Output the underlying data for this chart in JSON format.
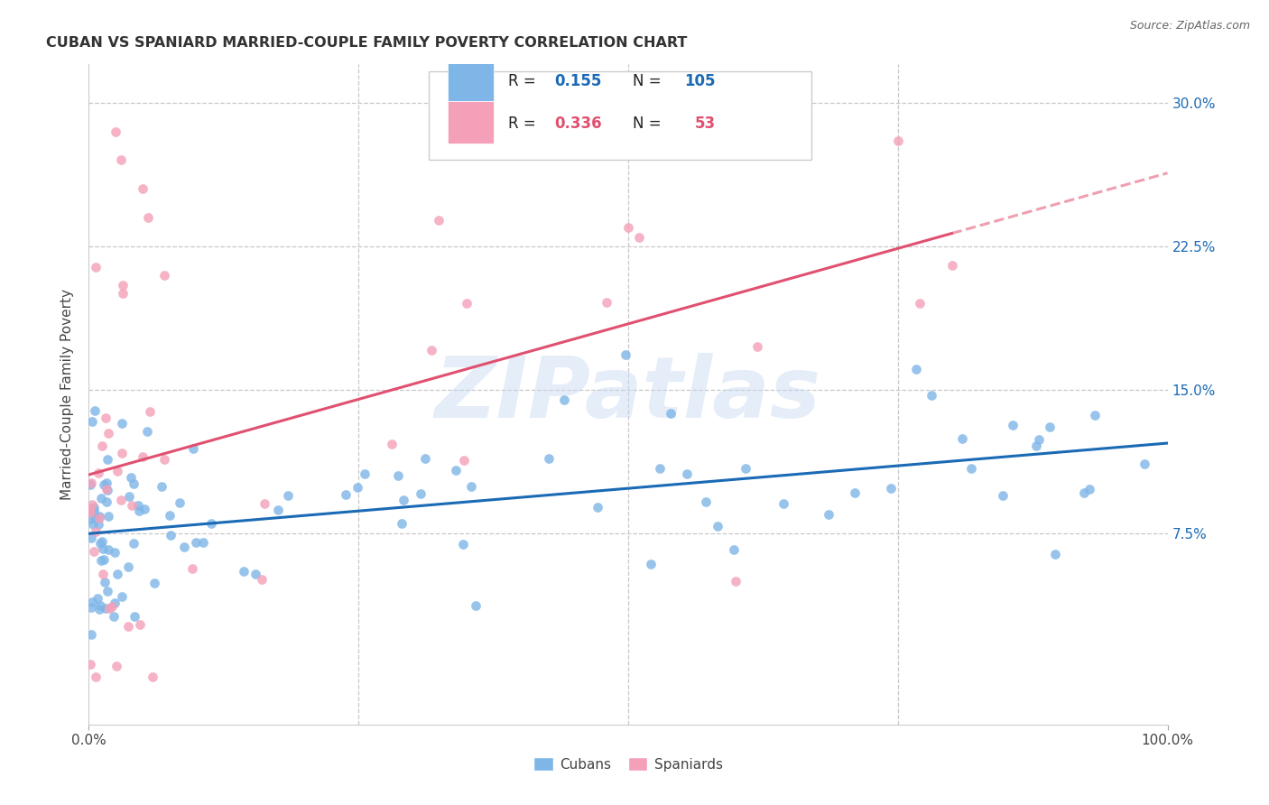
{
  "title": "CUBAN VS SPANIARD MARRIED-COUPLE FAMILY POVERTY CORRELATION CHART",
  "source": "Source: ZipAtlas.com",
  "ylabel": "Married-Couple Family Poverty",
  "xlim": [
    0,
    1.0
  ],
  "ylim": [
    -0.025,
    0.32
  ],
  "ytick_positions": [
    0.075,
    0.15,
    0.225,
    0.3
  ],
  "yticklabels": [
    "7.5%",
    "15.0%",
    "22.5%",
    "30.0%"
  ],
  "watermark": "ZIPatlas",
  "legend_cuban_R": "0.155",
  "legend_cuban_N": "105",
  "legend_spaniard_R": "0.336",
  "legend_spaniard_N": "53",
  "cuban_color": "#7eb6e8",
  "spaniard_color": "#f4a0b8",
  "cuban_line_color": "#1a6ab5",
  "spaniard_line_color": "#e05070",
  "background_color": "#ffffff",
  "grid_color": "#c8c8c8",
  "title_color": "#333333",
  "label_color": "#444444",
  "tick_color": "#1a6ab5",
  "source_color": "#666666"
}
